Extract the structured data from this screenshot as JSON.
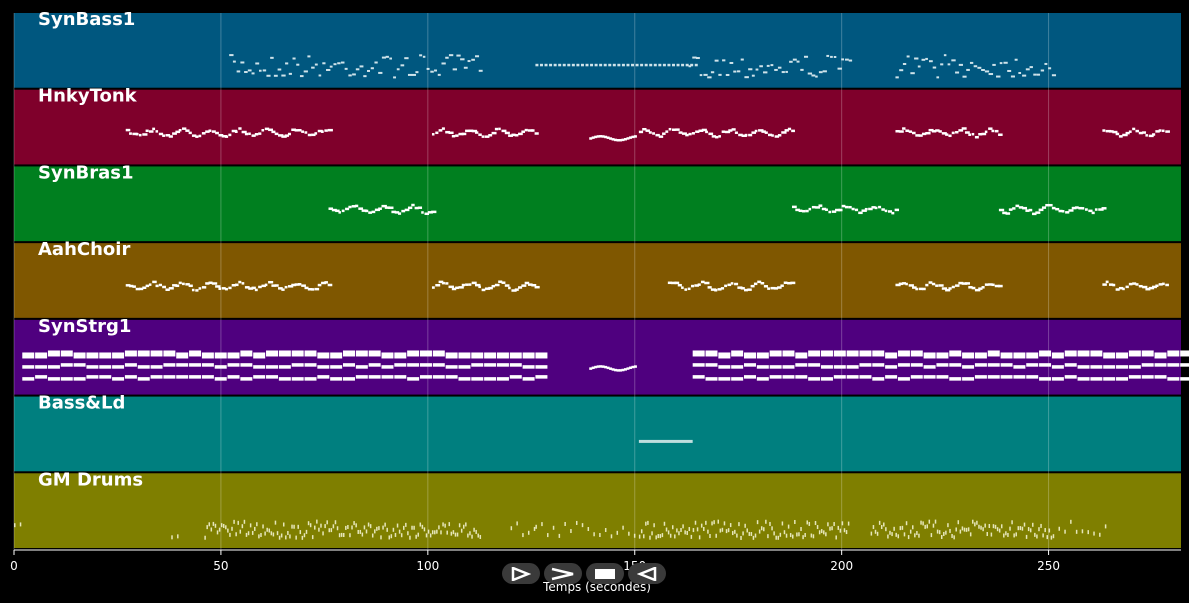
{
  "chart_data": {
    "type": "piano-roll",
    "xlabel": "Temps (secondes)",
    "xlim": [
      0,
      282
    ],
    "xticks": [
      0,
      50,
      100,
      150,
      200,
      250
    ],
    "grid": true,
    "tracks": [
      {
        "name": "SynBass1",
        "color": "#00577f",
        "segments": [
          [
            52,
            113,
            "dense"
          ],
          [
            126,
            165,
            "line"
          ],
          [
            163,
            202,
            "dense"
          ],
          [
            213,
            251,
            "dense"
          ]
        ]
      },
      {
        "name": "HnkyTonk",
        "color": "#7f002b",
        "segments": [
          [
            27,
            76,
            "melody"
          ],
          [
            101,
            126,
            "melody"
          ],
          [
            139,
            150,
            "low"
          ],
          [
            151,
            188,
            "melody"
          ],
          [
            213,
            238,
            "melody"
          ],
          [
            263,
            279,
            "melody"
          ]
        ]
      },
      {
        "name": "SynBras1",
        "color": "#007f1f",
        "segments": [
          [
            76,
            101,
            "melody"
          ],
          [
            188,
            213,
            "melody"
          ],
          [
            238,
            263,
            "melody"
          ]
        ]
      },
      {
        "name": "AahChoir",
        "color": "#7f5700",
        "segments": [
          [
            27,
            76,
            "melody"
          ],
          [
            101,
            126,
            "melody"
          ],
          [
            158,
            188,
            "melody"
          ],
          [
            213,
            238,
            "melody"
          ],
          [
            263,
            279,
            "melody"
          ]
        ]
      },
      {
        "name": "SynStrg1",
        "color": "#4f007f",
        "segments": [
          [
            2,
            126,
            "chords"
          ],
          [
            139,
            150,
            "low"
          ],
          [
            164,
            282,
            "chords"
          ]
        ]
      },
      {
        "name": "Bass&Ld",
        "color": "#007f7f",
        "segments": [
          [
            151,
            164,
            "single"
          ]
        ]
      },
      {
        "name": "GM Drums",
        "color": "#7f7f00",
        "segments": [
          [
            0,
            2,
            "sparse"
          ],
          [
            38,
            40,
            "sparse"
          ],
          [
            46,
            113,
            "drums"
          ],
          [
            120,
            126,
            "sparse"
          ],
          [
            126,
            151,
            "sparse"
          ],
          [
            151,
            202,
            "drums"
          ],
          [
            207,
            251,
            "drums"
          ],
          [
            251,
            264,
            "sparse"
          ]
        ]
      }
    ]
  },
  "controls": [
    {
      "name": "play-reverse",
      "icon": "triangle-right-outline"
    },
    {
      "name": "fast-forward",
      "icon": "chevron-right"
    },
    {
      "name": "stop",
      "icon": "square"
    },
    {
      "name": "play-back",
      "icon": "triangle-left-outline"
    }
  ]
}
